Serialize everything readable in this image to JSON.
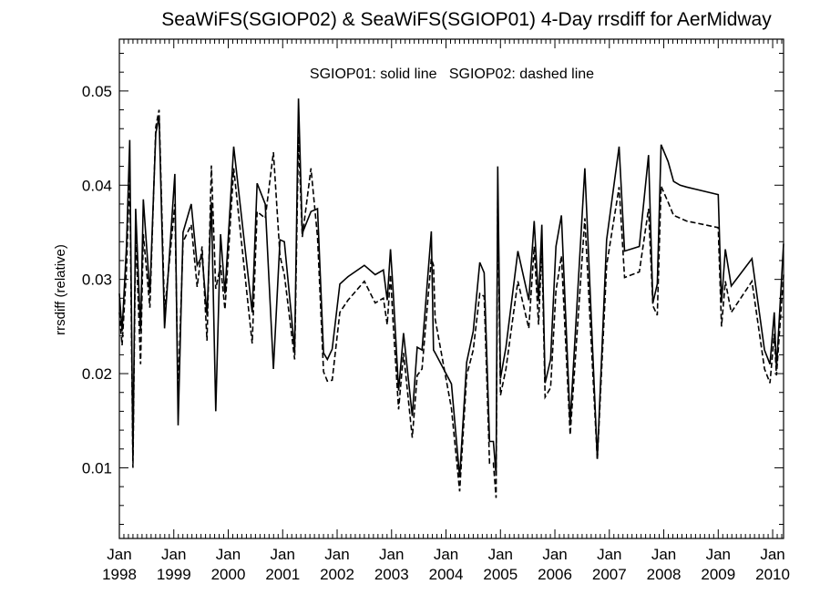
{
  "chart_data": {
    "type": "line",
    "title": "SeaWiFS(SGIOP02) & SeaWiFS(SGIOP01) 4-Day rrsdiff for AerMidway",
    "xlabel": "",
    "ylabel": "rrsdiff (relative)",
    "annotation": "SGIOP01: solid line   SGIOP02: dashed line",
    "xlim": [
      1998.0,
      2010.2
    ],
    "ylim": [
      0.0025,
      0.0555
    ],
    "y_ticks": [
      0.01,
      0.02,
      0.03,
      0.04,
      0.05
    ],
    "y_tick_labels": [
      "0.01",
      "0.02",
      "0.03",
      "0.04",
      "0.05"
    ],
    "x_ticks": [
      {
        "value": 1998,
        "month": "Jan",
        "year": "1998"
      },
      {
        "value": 1999,
        "month": "Jan",
        "year": "1999"
      },
      {
        "value": 2000,
        "month": "Jan",
        "year": "2000"
      },
      {
        "value": 2001,
        "month": "Jan",
        "year": "2001"
      },
      {
        "value": 2002,
        "month": "Jan",
        "year": "2002"
      },
      {
        "value": 2003,
        "month": "Jan",
        "year": "2003"
      },
      {
        "value": 2004,
        "month": "Jan",
        "year": "2004"
      },
      {
        "value": 2005,
        "month": "Jan",
        "year": "2005"
      },
      {
        "value": 2006,
        "month": "Jan",
        "year": "2006"
      },
      {
        "value": 2007,
        "month": "Jan",
        "year": "2007"
      },
      {
        "value": 2008,
        "month": "Jan",
        "year": "2008"
      },
      {
        "value": 2009,
        "month": "Jan",
        "year": "2009"
      },
      {
        "value": 2010,
        "month": "Jan",
        "year": "2010"
      }
    ],
    "series": [
      {
        "name": "SGIOP01",
        "style": "solid",
        "x": [
          1998.0,
          1998.05,
          1998.13,
          1998.19,
          1998.25,
          1998.3,
          1998.39,
          1998.44,
          1998.56,
          1998.67,
          1998.73,
          1998.83,
          1999.02,
          1999.08,
          1999.17,
          1999.32,
          1999.43,
          1999.52,
          1999.61,
          1999.69,
          1999.77,
          1999.86,
          1999.94,
          2000.1,
          2000.44,
          2000.53,
          2000.68,
          2000.83,
          2000.95,
          2001.03,
          2001.22,
          2001.29,
          2001.36,
          2001.52,
          2001.64,
          2001.75,
          2001.82,
          2001.91,
          2002.05,
          2002.2,
          2002.5,
          2002.7,
          2002.85,
          2002.92,
          2002.98,
          2003.03,
          2003.13,
          2003.22,
          2003.38,
          2003.47,
          2003.56,
          2003.73,
          2003.77,
          2003.8,
          2004.1,
          2004.25,
          2004.38,
          2004.5,
          2004.62,
          2004.7,
          2004.8,
          2004.87,
          2004.92,
          2004.95,
          2005.0,
          2005.1,
          2005.32,
          2005.52,
          2005.62,
          2005.7,
          2005.76,
          2005.82,
          2005.92,
          2006.02,
          2006.12,
          2006.28,
          2006.55,
          2006.78,
          2006.95,
          2007.18,
          2007.28,
          2007.55,
          2007.72,
          2007.8,
          2007.88,
          2007.95,
          2008.08,
          2008.18,
          2008.3,
          2008.42,
          2009.0,
          2009.06,
          2009.13,
          2009.24,
          2009.62,
          2009.85,
          2009.95,
          2010.03,
          2010.07,
          2010.2
        ],
        "y": [
          0.0285,
          0.0245,
          0.0335,
          0.0448,
          0.011,
          0.0375,
          0.0245,
          0.0385,
          0.0285,
          0.0455,
          0.0473,
          0.0248,
          0.0412,
          0.0145,
          0.035,
          0.038,
          0.0315,
          0.0325,
          0.0262,
          0.0382,
          0.016,
          0.0348,
          0.0285,
          0.0441,
          0.0265,
          0.0402,
          0.038,
          0.0205,
          0.0342,
          0.034,
          0.0225,
          0.0492,
          0.0349,
          0.0372,
          0.0375,
          0.0222,
          0.0215,
          0.0226,
          0.0295,
          0.0303,
          0.0315,
          0.0305,
          0.031,
          0.0278,
          0.0332,
          0.0286,
          0.0182,
          0.0243,
          0.0155,
          0.0228,
          0.0225,
          0.0351,
          0.0225,
          0.0222,
          0.0189,
          0.009,
          0.0212,
          0.0245,
          0.0318,
          0.0307,
          0.0128,
          0.0128,
          0.0092,
          0.042,
          0.0195,
          0.0228,
          0.033,
          0.0278,
          0.0362,
          0.0277,
          0.0358,
          0.019,
          0.0215,
          0.0335,
          0.0368,
          0.0148,
          0.0418,
          0.011,
          0.0342,
          0.0441,
          0.033,
          0.0335,
          0.0432,
          0.0275,
          0.0295,
          0.0443,
          0.0425,
          0.0404,
          0.04,
          0.0398,
          0.039,
          0.0275,
          0.0332,
          0.0293,
          0.0322,
          0.0225,
          0.021,
          0.0265,
          0.0205,
          0.0338
        ]
      },
      {
        "name": "SGIOP02",
        "style": "dashed",
        "x": [
          1998.0,
          1998.05,
          1998.13,
          1998.19,
          1998.25,
          1998.3,
          1998.39,
          1998.44,
          1998.56,
          1998.67,
          1998.73,
          1998.83,
          1999.02,
          1999.08,
          1999.17,
          1999.32,
          1999.43,
          1999.52,
          1999.61,
          1999.69,
          1999.77,
          1999.86,
          1999.94,
          2000.1,
          2000.44,
          2000.53,
          2000.68,
          2000.83,
          2000.95,
          2001.03,
          2001.22,
          2001.29,
          2001.36,
          2001.52,
          2001.64,
          2001.75,
          2001.82,
          2001.91,
          2002.05,
          2002.2,
          2002.5,
          2002.7,
          2002.85,
          2002.92,
          2002.98,
          2003.03,
          2003.13,
          2003.22,
          2003.38,
          2003.47,
          2003.56,
          2003.73,
          2003.77,
          2003.8,
          2004.1,
          2004.25,
          2004.38,
          2004.5,
          2004.62,
          2004.7,
          2004.8,
          2004.87,
          2004.92,
          2004.95,
          2005.0,
          2005.1,
          2005.32,
          2005.52,
          2005.62,
          2005.7,
          2005.76,
          2005.82,
          2005.92,
          2006.02,
          2006.12,
          2006.28,
          2006.55,
          2006.78,
          2006.95,
          2007.18,
          2007.28,
          2007.55,
          2007.72,
          2007.8,
          2007.88,
          2007.95,
          2008.08,
          2008.18,
          2008.3,
          2008.42,
          2009.0,
          2009.06,
          2009.13,
          2009.24,
          2009.62,
          2009.85,
          2009.95,
          2010.03,
          2010.07,
          2010.2
        ],
        "y": [
          0.0265,
          0.023,
          0.031,
          0.0415,
          0.01,
          0.035,
          0.021,
          0.0348,
          0.027,
          0.0462,
          0.048,
          0.0265,
          0.038,
          0.018,
          0.034,
          0.0358,
          0.0292,
          0.0335,
          0.0235,
          0.0421,
          0.029,
          0.0315,
          0.0268,
          0.0418,
          0.0232,
          0.0372,
          0.0365,
          0.0435,
          0.0325,
          0.0305,
          0.0215,
          0.0452,
          0.0345,
          0.0418,
          0.0345,
          0.0202,
          0.0192,
          0.0193,
          0.0265,
          0.0278,
          0.0298,
          0.0275,
          0.028,
          0.0252,
          0.0305,
          0.0252,
          0.0162,
          0.0222,
          0.0132,
          0.0198,
          0.0205,
          0.0322,
          0.0315,
          0.0258,
          0.0163,
          0.0075,
          0.0198,
          0.0225,
          0.0285,
          0.0282,
          0.0105,
          0.0105,
          0.0068,
          0.0391,
          0.0177,
          0.0205,
          0.0298,
          0.0248,
          0.0335,
          0.0252,
          0.0335,
          0.0175,
          0.0185,
          0.0288,
          0.0325,
          0.0135,
          0.0365,
          0.0108,
          0.0315,
          0.0398,
          0.0302,
          0.0308,
          0.0375,
          0.0272,
          0.0262,
          0.0399,
          0.0382,
          0.0368,
          0.0365,
          0.0362,
          0.0355,
          0.025,
          0.0298,
          0.0265,
          0.0298,
          0.0205,
          0.019,
          0.0242,
          0.0198,
          0.0305
        ]
      }
    ]
  }
}
